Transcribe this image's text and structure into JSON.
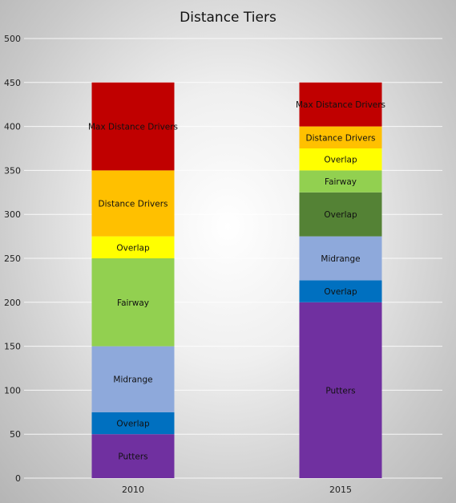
{
  "chart_data": {
    "type": "bar",
    "stacked": true,
    "title": "Distance Tiers",
    "xlabel": "",
    "ylabel": "",
    "categories": [
      "2010",
      "2015"
    ],
    "ylim": [
      0,
      500
    ],
    "yticks": [
      0,
      50,
      100,
      150,
      200,
      250,
      300,
      350,
      400,
      450,
      500
    ],
    "grid": true,
    "stacks": [
      {
        "category": "2010",
        "segments": [
          {
            "label": "Putters",
            "value": 50,
            "color": "#7030A0"
          },
          {
            "label": "Overlap",
            "value": 25,
            "color": "#0070C0"
          },
          {
            "label": "Midrange",
            "value": 75,
            "color": "#8EA9DB"
          },
          {
            "label": "Fairway",
            "value": 100,
            "color": "#92D050"
          },
          {
            "label": "Overlap",
            "value": 25,
            "color": "#FFFF00"
          },
          {
            "label": "Distance Drivers",
            "value": 75,
            "color": "#FFC000"
          },
          {
            "label": "Max Distance Drivers",
            "value": 100,
            "color": "#C00000"
          }
        ]
      },
      {
        "category": "2015",
        "segments": [
          {
            "label": "Putters",
            "value": 200,
            "color": "#7030A0"
          },
          {
            "label": "Overlap",
            "value": 25,
            "color": "#0070C0"
          },
          {
            "label": "Midrange",
            "value": 50,
            "color": "#8EA9DB"
          },
          {
            "label": "Overlap",
            "value": 50,
            "color": "#548235"
          },
          {
            "label": "Fairway",
            "value": 25,
            "color": "#92D050"
          },
          {
            "label": "Overlap",
            "value": 25,
            "color": "#FFFF00"
          },
          {
            "label": "Distance Drivers",
            "value": 25,
            "color": "#FFC000"
          },
          {
            "label": "Max Distance Drivers",
            "value": 50,
            "color": "#C00000"
          }
        ]
      }
    ]
  }
}
